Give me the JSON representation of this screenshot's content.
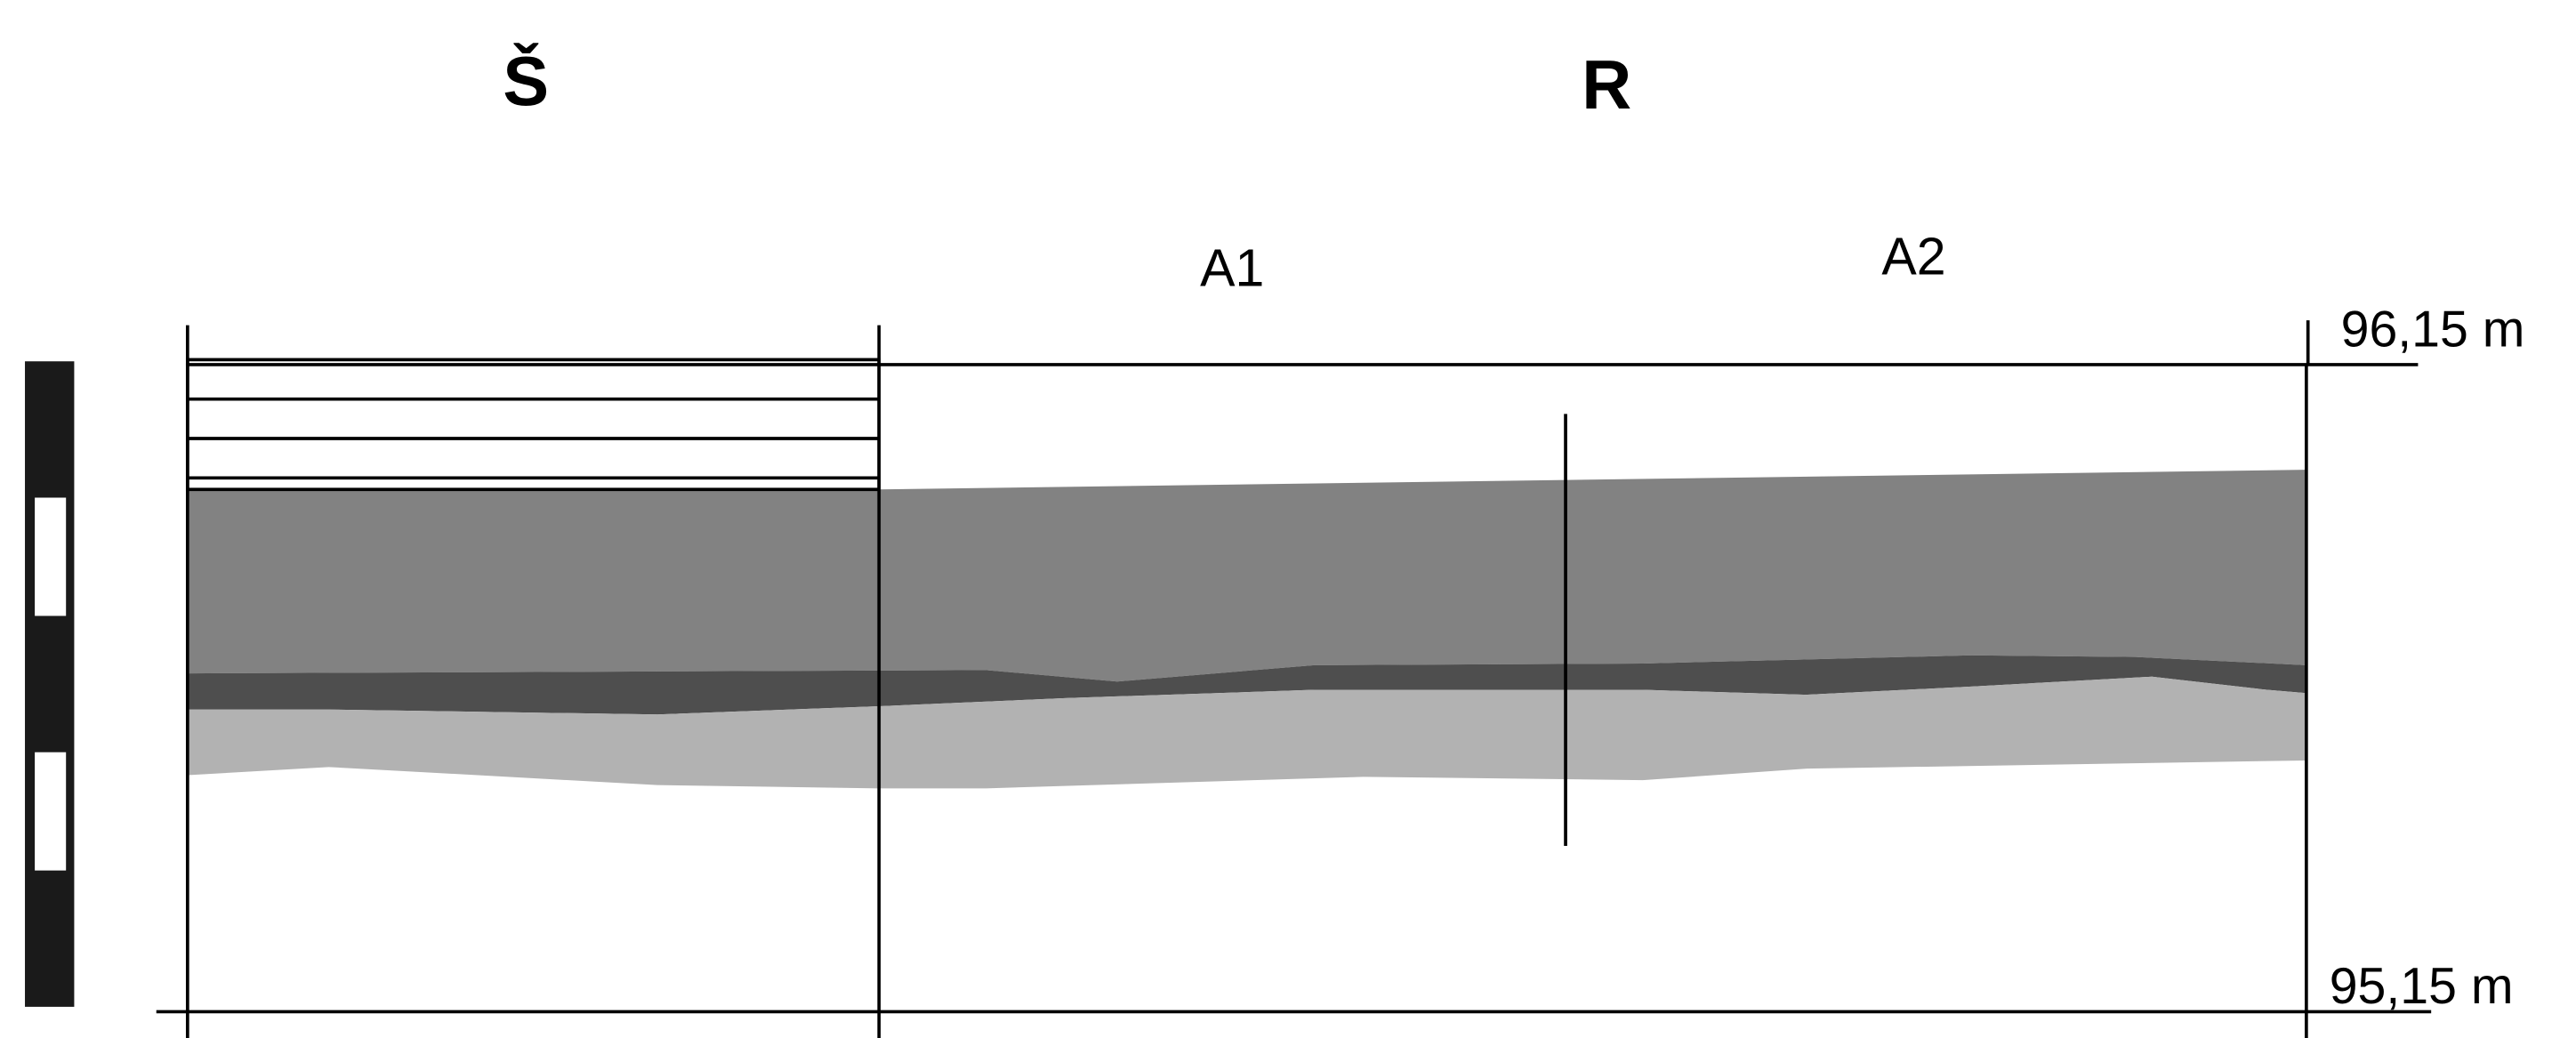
{
  "headers": [
    "Š",
    "R"
  ],
  "subheaders": [
    "A1",
    "A2"
  ],
  "elevations": [
    "96,15 m",
    "95,15 m"
  ]
}
